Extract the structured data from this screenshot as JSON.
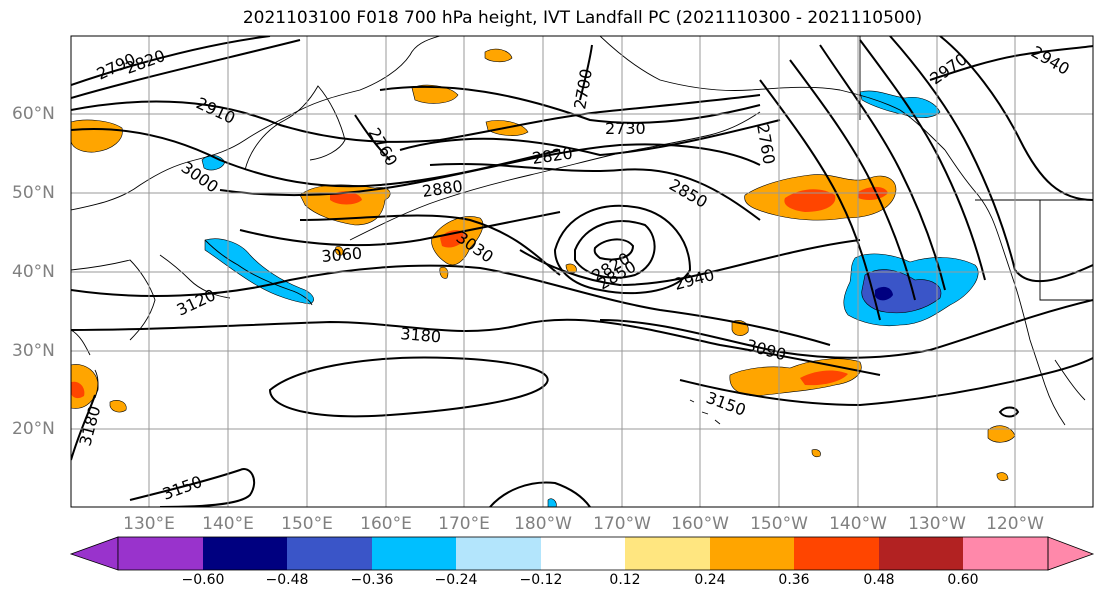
{
  "title": "2021103100 F018 700 hPa height, IVT Landfall PC (2021110300 - 2021110500)",
  "lat_labels": [
    "60°N",
    "50°N",
    "40°N",
    "30°N",
    "20°N"
  ],
  "lon_labels": [
    "130°E",
    "140°E",
    "150°E",
    "160°E",
    "170°E",
    "180°W",
    "170°W",
    "160°W",
    "150°W",
    "140°W",
    "130°W",
    "120°W"
  ],
  "contour_labels": [
    "2790",
    "2820",
    "2910",
    "3000",
    "2760",
    "2700",
    "2760",
    "2730",
    "2820",
    "2880",
    "2850",
    "2970",
    "2940",
    "3060",
    "3030",
    "2820",
    "2850",
    "2940",
    "3120",
    "3180",
    "3090",
    "3150",
    "3180",
    "3150"
  ],
  "colorbar": {
    "ticks": [
      "−0.60",
      "−0.48",
      "−0.36",
      "−0.24",
      "−0.12",
      "0.12",
      "0.24",
      "0.36",
      "0.48",
      "0.60"
    ],
    "colors": [
      "#9933cc",
      "#000080",
      "#3a55c8",
      "#00bfff",
      "#b3e5fc",
      "#ffffff",
      "#ffe680",
      "#ffa500",
      "#ff4500",
      "#b22222",
      "#ff88aa",
      "#ff88aa"
    ]
  },
  "colors": {
    "contour": "#000000",
    "grid": "#999999",
    "axis_label": "#808080"
  }
}
